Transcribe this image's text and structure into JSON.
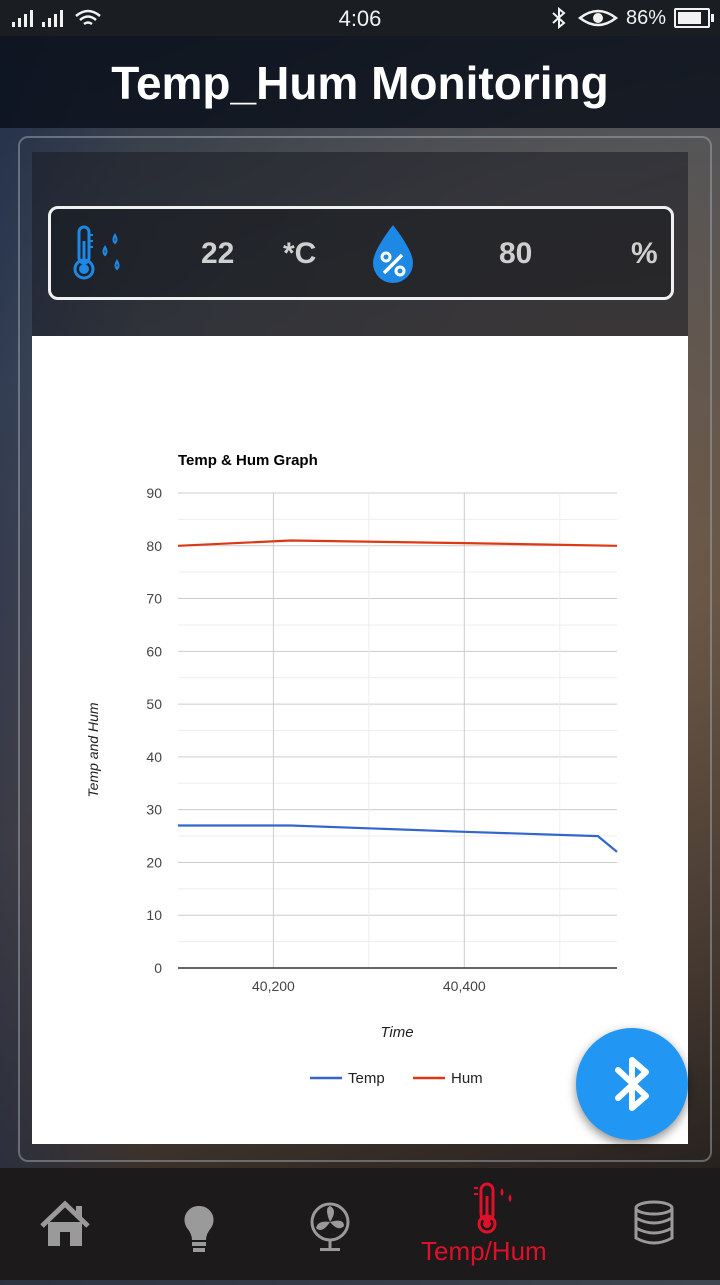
{
  "status_bar": {
    "time": "4:06",
    "battery": "86%",
    "icons": [
      "signal-icon",
      "signal-icon",
      "wifi-icon",
      "bluetooth-icon",
      "eye-icon",
      "battery-icon"
    ]
  },
  "header": {
    "title": "Temp_Hum Monitoring"
  },
  "readings": {
    "temperature": {
      "value": "22",
      "unit": "*C",
      "icon": "thermometer-drops-icon"
    },
    "humidity": {
      "value": "80",
      "unit": "%",
      "icon": "humidity-drop-icon"
    },
    "accent_color": "#1e88e5"
  },
  "chart_data": {
    "type": "line",
    "title": "Temp & Hum Graph",
    "xlabel": "Time",
    "ylabel": "Temp and Hum",
    "xlim": [
      40100,
      40560
    ],
    "ylim": [
      0,
      90
    ],
    "x_ticks": [
      40200,
      40400
    ],
    "x_tick_labels": [
      "40,200",
      "40,400"
    ],
    "y_ticks": [
      0,
      10,
      20,
      30,
      40,
      50,
      60,
      70,
      80,
      90
    ],
    "grid": true,
    "legend": "bottom",
    "series": [
      {
        "name": "Temp",
        "color": "#3366cc",
        "points": [
          [
            40100,
            27
          ],
          [
            40218,
            27
          ],
          [
            40400,
            25.8
          ],
          [
            40540,
            25
          ],
          [
            40560,
            22
          ]
        ]
      },
      {
        "name": "Hum",
        "color": "#dc3912",
        "points": [
          [
            40100,
            80
          ],
          [
            40218,
            81
          ],
          [
            40400,
            80.5
          ],
          [
            40560,
            80
          ]
        ]
      }
    ]
  },
  "fab": {
    "icon": "bluetooth-icon",
    "color": "#2196f3"
  },
  "bottom_nav": {
    "items": [
      {
        "icon": "home-icon"
      },
      {
        "icon": "bulb-icon"
      },
      {
        "icon": "fan-icon"
      },
      {
        "icon": "thermometer-icon",
        "label": "Temp/Hum",
        "active": true
      },
      {
        "icon": "database-icon"
      }
    ],
    "active_color": "#e0102a"
  }
}
